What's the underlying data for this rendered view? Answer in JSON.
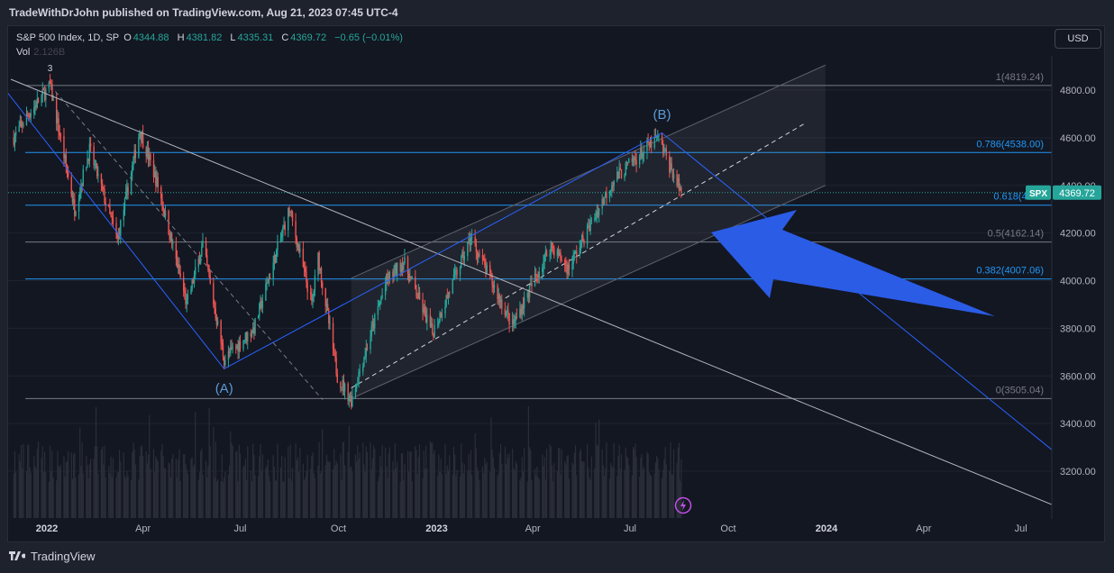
{
  "header": {
    "publisher_line": "TradeWithDrJohn published on TradingView.com, Aug 21, 2023 07:45 UTC-4"
  },
  "legend": {
    "symbol": "S&P 500 Index, 1D, SP",
    "open_label": "O",
    "open": "4344.88",
    "high_label": "H",
    "high": "4381.82",
    "low_label": "L",
    "low": "4335.31",
    "close_label": "C",
    "close": "4369.72",
    "change": "−0.65 (−0.01%)",
    "vol_label": "Vol",
    "vol_value": "2.126B"
  },
  "currency_button": "USD",
  "footer": {
    "brand": "TradingView"
  },
  "colors": {
    "up": "#26a69a",
    "down": "#ef5350",
    "fib_blue": "#2962ff",
    "channel": "#363a45",
    "arrow": "#2b5ce6",
    "wave_label": "#5b9bd5"
  },
  "chart_data": {
    "type": "candlestick",
    "title": "S&P 500 Index, 1D, SP",
    "last_price": "4369.72",
    "last_price_tag": "SPX",
    "y_ticks": [
      "4800.00",
      "4600.00",
      "4400.00",
      "4200.00",
      "4000.00",
      "3800.00",
      "3600.00",
      "3400.00",
      "3200.00"
    ],
    "x_ticks": [
      "2022",
      "Apr",
      "Jul",
      "Oct",
      "2023",
      "Apr",
      "Jul",
      "Oct",
      "2024",
      "Apr",
      "Jul"
    ],
    "fib_levels": [
      {
        "label": "1(4819.24)",
        "value": 4819.24,
        "color": "#787b86"
      },
      {
        "label": "0.786(4538.00)",
        "value": 4538.0,
        "color": "#2196f3"
      },
      {
        "label": "0.618(4317",
        "value": 4317,
        "color": "#2196f3"
      },
      {
        "label": "0.5(4162.14)",
        "value": 4162.14,
        "color": "#787b86"
      },
      {
        "label": "0.382(4007.06)",
        "value": 4007.06,
        "color": "#2196f3"
      },
      {
        "label": "0(3505.04)",
        "value": 3505.04,
        "color": "#787b86"
      }
    ],
    "wave_labels": [
      {
        "text": "3",
        "date": "2022-01-04",
        "price": 4895
      },
      {
        "text": "(A)",
        "date": "2022-06-16",
        "price": 3545
      },
      {
        "text": "(B)",
        "date": "2023-07-31",
        "price": 4695
      }
    ],
    "price_path": [
      [
        "2021-12-01",
        4600
      ],
      [
        "2021-12-15",
        4700
      ],
      [
        "2022-01-04",
        4818
      ],
      [
        "2022-01-27",
        4300
      ],
      [
        "2022-02-10",
        4550
      ],
      [
        "2022-03-08",
        4170
      ],
      [
        "2022-03-29",
        4630
      ],
      [
        "2022-04-15",
        4400
      ],
      [
        "2022-05-12",
        3900
      ],
      [
        "2022-05-27",
        4150
      ],
      [
        "2022-06-16",
        3670
      ],
      [
        "2022-07-14",
        3800
      ],
      [
        "2022-08-16",
        4300
      ],
      [
        "2022-09-06",
        3900
      ],
      [
        "2022-09-12",
        4100
      ],
      [
        "2022-09-30",
        3600
      ],
      [
        "2022-10-13",
        3500
      ],
      [
        "2022-11-15",
        4000
      ],
      [
        "2022-12-01",
        4080
      ],
      [
        "2022-12-28",
        3780
      ],
      [
        "2023-02-02",
        4180
      ],
      [
        "2023-03-13",
        3810
      ],
      [
        "2023-04-18",
        4150
      ],
      [
        "2023-05-04",
        4050
      ],
      [
        "2023-06-15",
        4420
      ],
      [
        "2023-07-27",
        4600
      ],
      [
        "2023-08-18",
        4370
      ]
    ]
  }
}
